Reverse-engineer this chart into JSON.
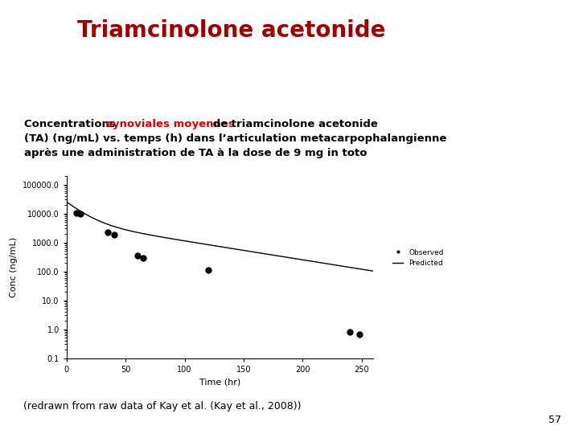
{
  "title": "Triamcinolone acetonide",
  "title_color": "#990000",
  "observed_x": [
    8,
    12,
    35,
    40,
    60,
    65,
    120,
    240,
    248
  ],
  "observed_y": [
    10500,
    9500,
    2200,
    1800,
    350,
    280,
    110,
    0.82,
    0.65
  ],
  "xlabel": "Time (hr)",
  "ylabel": "Conc (ng/mL)",
  "xlim": [
    0,
    260
  ],
  "ylim_log": [
    0.1,
    200000
  ],
  "xticks": [
    0,
    50,
    100,
    150,
    200,
    250
  ],
  "yticks_log": [
    0.1,
    1.0,
    10.0,
    100.0,
    1000.0,
    10000.0,
    100000.0
  ],
  "ytick_labels": [
    "0.1",
    "1.0",
    "10.0",
    "100.0",
    "1000.0",
    "10000.0",
    "100000.0"
  ],
  "legend_observed": "Observed",
  "legend_predicted": "Predicted",
  "footer_text": "(redrawn from raw data of Kay et al. (Kay et al., 2008))",
  "page_number": "57",
  "background_color": "#ffffff",
  "line_color": "#000000",
  "dot_color": "#000000",
  "red_color": "#cc0000",
  "subtitle_black1": "Concentrations ",
  "subtitle_red": "synoviales moyennes",
  "subtitle_black2": " de triamcinolone acetonide",
  "subtitle_line2": "(TA) (ng/mL) vs. temps (h) dans l’articulation metacarpophalangienne",
  "subtitle_line3": "après une administration de TA à la dose de 9 mg in toto"
}
